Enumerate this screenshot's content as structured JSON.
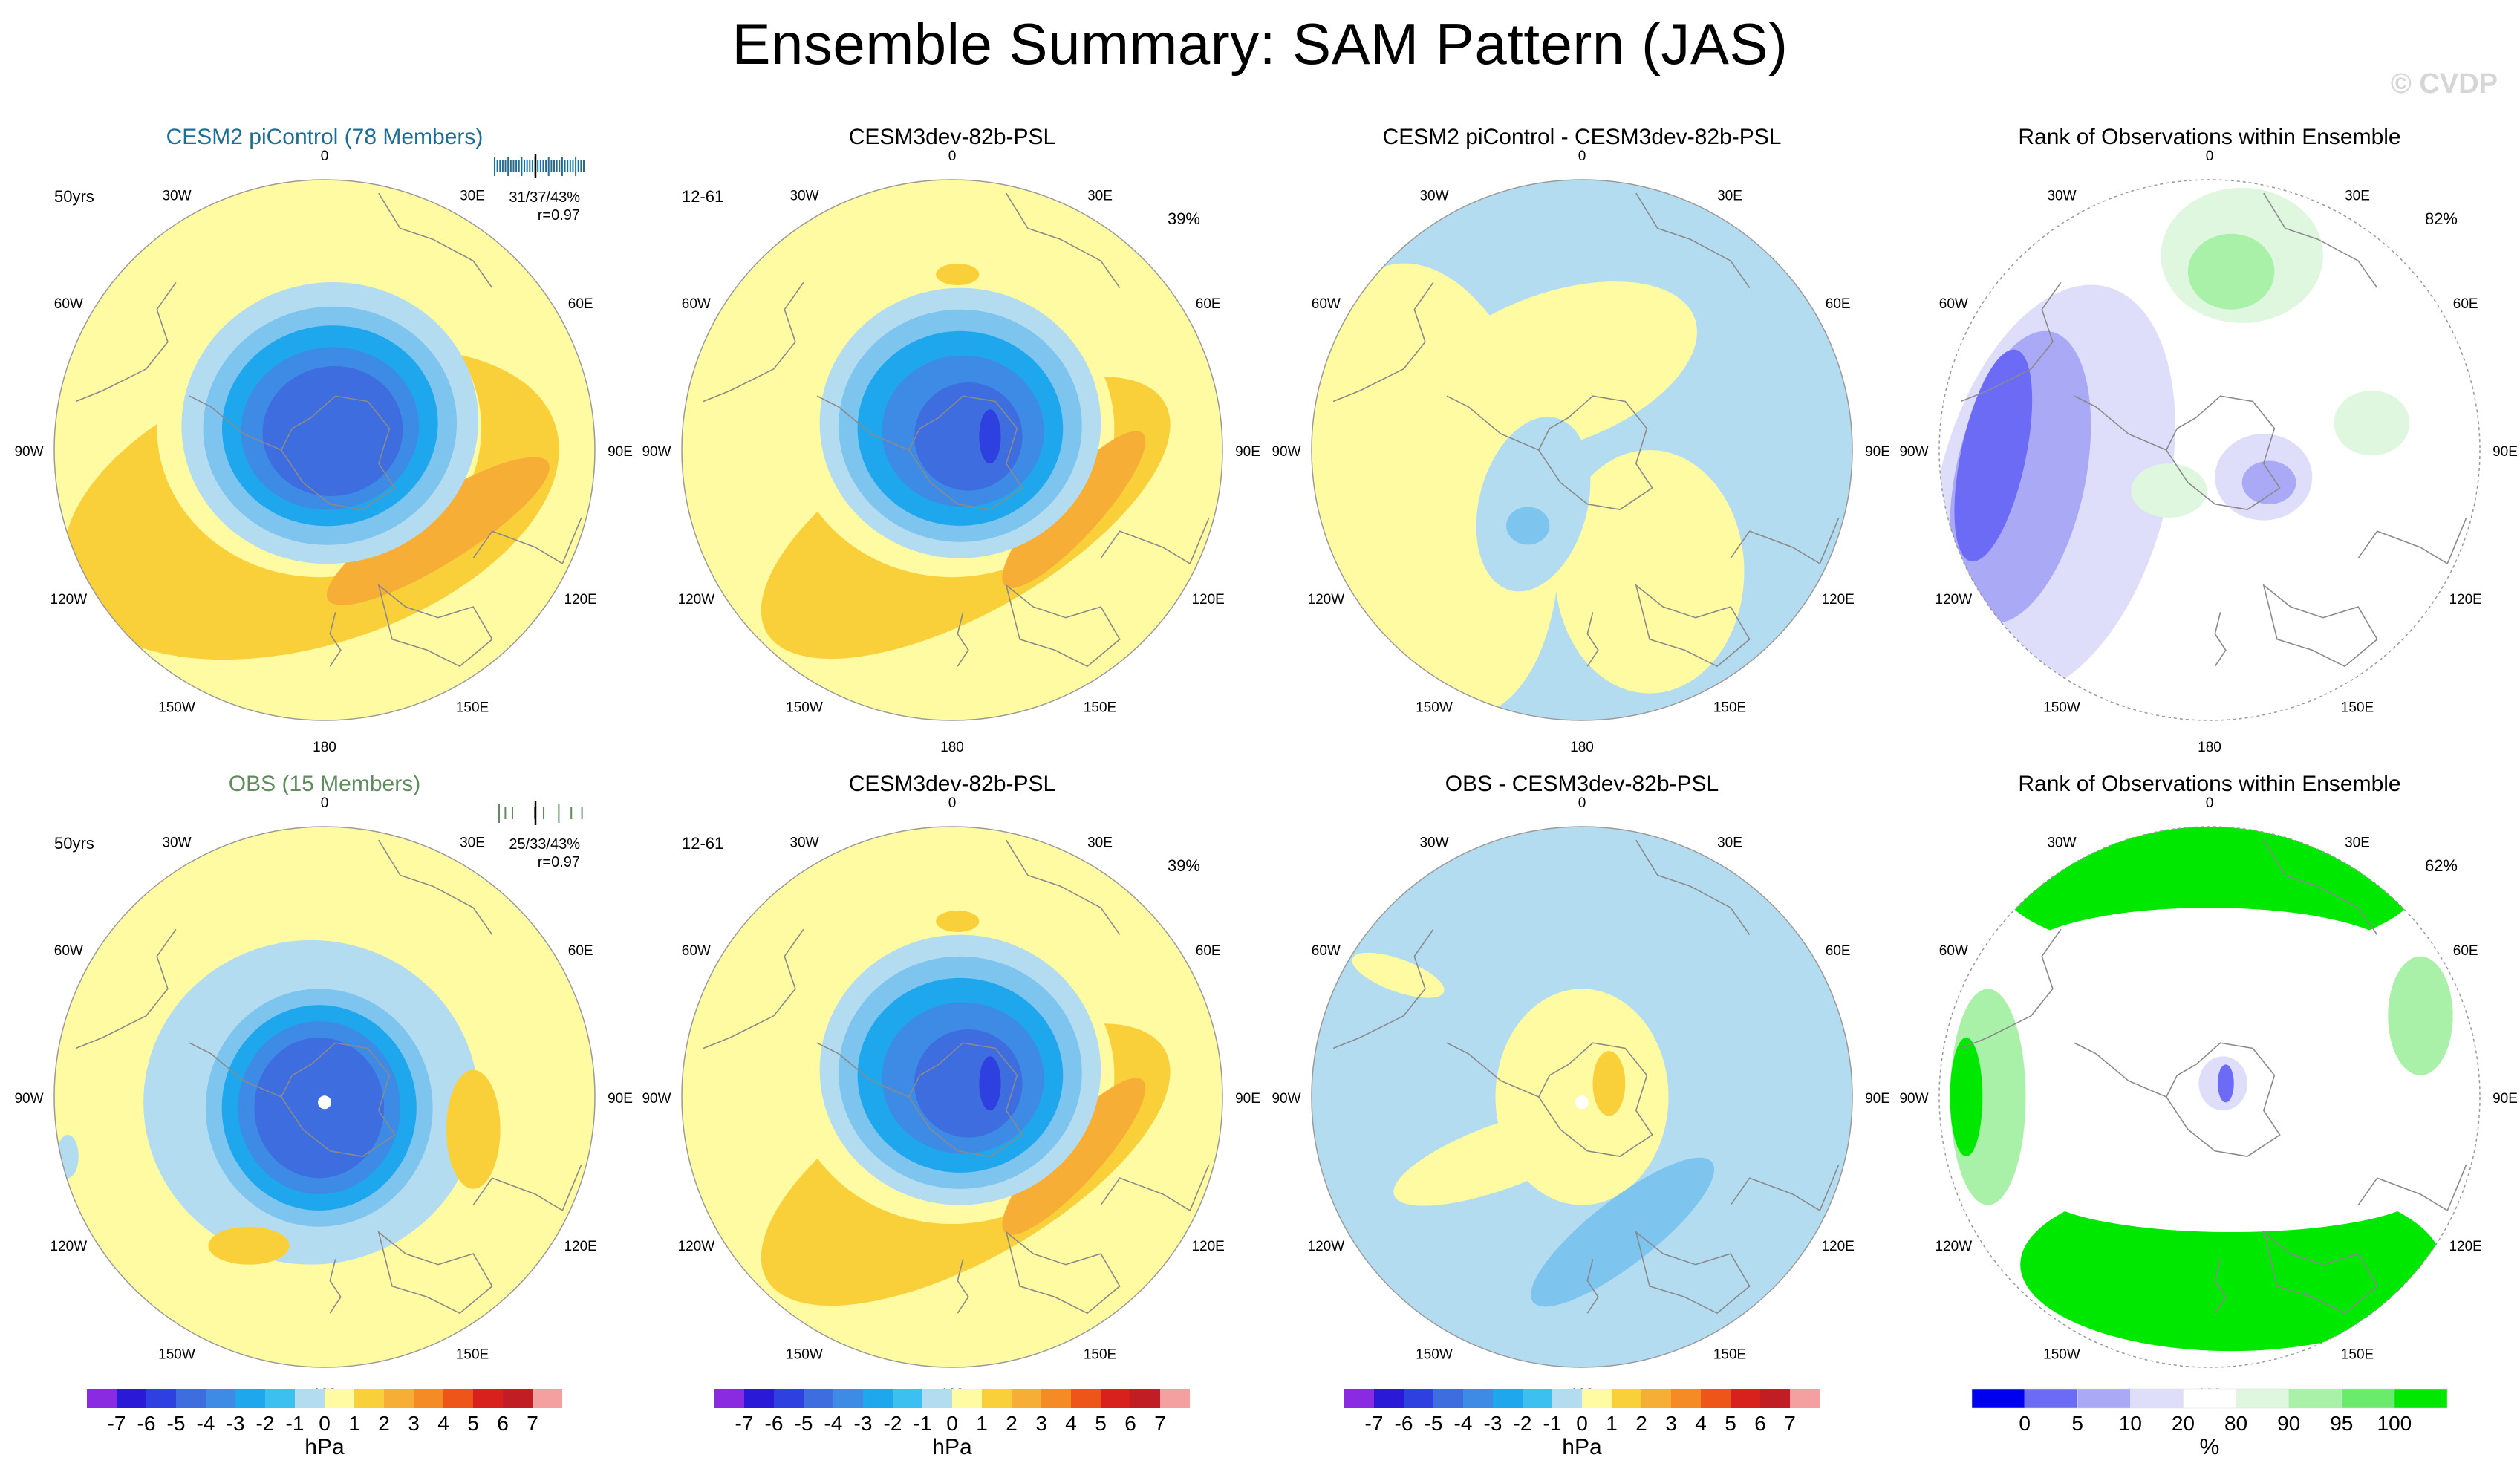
{
  "page": {
    "title": "Ensemble Summary: SAM Pattern (JAS)",
    "watermark": "© CVDP"
  },
  "colors": {
    "cesm2_title": "#1c6e96",
    "obs_title": "#5f8c5f",
    "land_line": "#8a8a8a"
  },
  "longitude_labels": [
    "0",
    "30E",
    "60E",
    "90E",
    "120E",
    "150E",
    "180",
    "150W",
    "120W",
    "90W",
    "60W",
    "30W"
  ],
  "chart_data": [
    {
      "type": "heatmap",
      "name": "cesm2-ensemble-mean",
      "title": "CESM2 piControl (78 Members)",
      "title_color": "#1c6e96",
      "left_label": "50yrs",
      "stats": "31/37/43%",
      "correlation": "r=0.97",
      "rug_ticks": true,
      "units": "hPa",
      "features": [
        {
          "kind": "ring",
          "cx": 0.0,
          "cy": -0.08,
          "rx": 0.96,
          "ry": 0.82,
          "rot": -20,
          "level": 1,
          "color": "#f7c438"
        },
        {
          "kind": "ring",
          "cx": 0.12,
          "cy": -0.13,
          "rx": 0.72,
          "ry": 0.6,
          "rot": -20,
          "level": 1,
          "color": "#ffffff"
        },
        {
          "kind": "blob",
          "cx": 0.12,
          "cy": -0.27,
          "rx": 0.92,
          "ry": 0.25,
          "rot": -22,
          "level": 2,
          "color": "#f7a63a"
        },
        {
          "kind": "blob",
          "cx": 0.1,
          "cy": 0.0,
          "rx": 0.58,
          "ry": 0.5,
          "rot": -10,
          "level": -1,
          "color": "#b6ddf2"
        },
        {
          "kind": "blob",
          "cx": 0.1,
          "cy": 0.02,
          "rx": 0.5,
          "ry": 0.43,
          "rot": -10,
          "level": -2,
          "color": "#7dc4ee"
        },
        {
          "kind": "blob",
          "cx": 0.1,
          "cy": 0.03,
          "rx": 0.43,
          "ry": 0.37,
          "rot": -10,
          "level": -3,
          "color": "#18b0f0"
        },
        {
          "kind": "blob",
          "cx": 0.12,
          "cy": 0.04,
          "rx": 0.35,
          "ry": 0.3,
          "rot": -10,
          "level": -4,
          "color": "#27a2ef"
        },
        {
          "kind": "blob",
          "cx": 0.12,
          "cy": 0.05,
          "rx": 0.27,
          "ry": 0.23,
          "rot": -10,
          "level": -5,
          "color": "#3f75de"
        }
      ]
    },
    {
      "type": "heatmap",
      "name": "cesm3dev-psl-top",
      "title": "CESM3dev-82b-PSL",
      "left_label": "12-61",
      "right_label": "39%",
      "units": "hPa"
    },
    {
      "type": "heatmap",
      "name": "difference-top",
      "title": "CESM2 piControl - CESM3dev-82b-PSL",
      "units": "hPa"
    },
    {
      "type": "heatmap",
      "name": "rank-top",
      "title": "Rank of Observations within Ensemble",
      "right_label": "82%",
      "units": "%"
    },
    {
      "type": "heatmap",
      "name": "obs-ensemble-mean",
      "title": "OBS (15 Members)",
      "title_color": "#5f8c5f",
      "left_label": "50yrs",
      "stats": "25/33/43%",
      "correlation": "r=0.97",
      "rug_ticks": true,
      "units": "hPa"
    },
    {
      "type": "heatmap",
      "name": "cesm3dev-psl-bottom",
      "title": "CESM3dev-82b-PSL",
      "left_label": "12-61",
      "right_label": "39%",
      "units": "hPa"
    },
    {
      "type": "heatmap",
      "name": "difference-bottom",
      "title": "OBS - CESM3dev-82b-PSL",
      "units": "hPa"
    },
    {
      "type": "heatmap",
      "name": "rank-bottom",
      "title": "Rank of Observations within Ensemble",
      "right_label": "62%",
      "units": "%"
    }
  ],
  "colorbars": [
    {
      "name": "hpa-colorbar",
      "units": "hPa",
      "tick_labels": [
        "-7",
        "-6",
        "-5",
        "-4",
        "-3",
        "-2",
        "-1",
        "0",
        "1",
        "2",
        "3",
        "4",
        "5",
        "6",
        "7"
      ],
      "colors": [
        "#8a2be2",
        "#2a1ad8",
        "#2f40e0",
        "#3d6ddf",
        "#3e8be6",
        "#1fa7ee",
        "#3cc0f0",
        "#b4dcf1",
        "#fffba3",
        "#f9d03a",
        "#f7ae36",
        "#f48b24",
        "#ee5518",
        "#d8201c",
        "#c11d24",
        "#f5a0a0"
      ]
    },
    {
      "name": "rank-colorbar",
      "units": "%",
      "tick_labels": [
        "0",
        "5",
        "10",
        "20",
        "80",
        "90",
        "95",
        "100"
      ],
      "colors": [
        "#0000f0",
        "#6b6bf6",
        "#a9a9f6",
        "#dedefb",
        "#ffffff",
        "#def7de",
        "#a9f0a9",
        "#6beb6b",
        "#00e800"
      ]
    }
  ]
}
